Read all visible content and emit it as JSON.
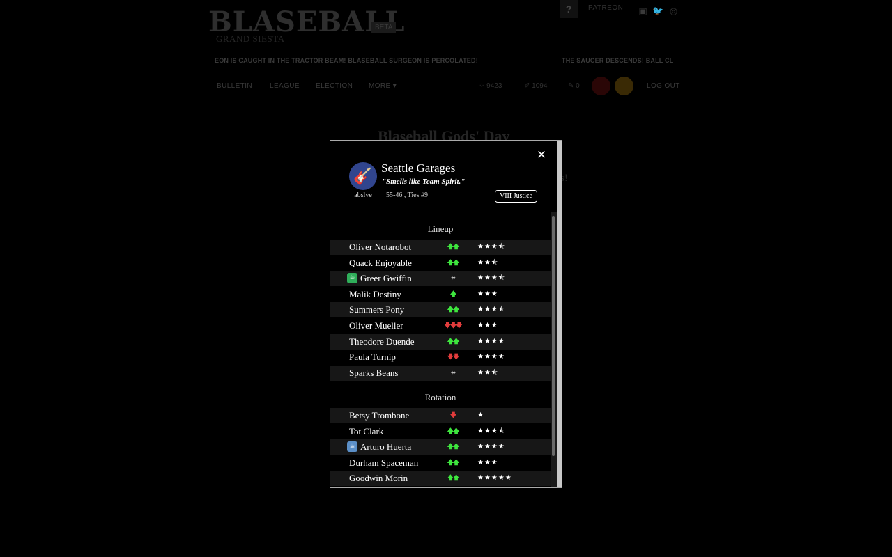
{
  "header": {
    "logo": "BLASEBALL",
    "beta": "BETA",
    "season": "GRAND SIESTA",
    "help": "?",
    "patreon": "PATREON"
  },
  "ticker": {
    "left": "EON IS CAUGHT IN THE TRACTOR BEAM! BLASEBALL SURGEON IS PERCOLATED!",
    "right": "THE SAUCER DESCENDS! BALL CLAR"
  },
  "nav": {
    "items": [
      "BULLETIN",
      "LEAGUE",
      "ELECTION",
      "MORE ▾"
    ],
    "coins": "9423",
    "votes": "1094",
    "snacks": "0",
    "logout": "LOG OUT"
  },
  "page": {
    "title": "Blaseball Gods' Day",
    "subtitle": "s!"
  },
  "colors": {
    "team_emblem": "#31458e",
    "trend_up": "#3ee63e",
    "trend_down": "#e23c3c",
    "item_green": "#2fae5a",
    "item_blue": "#5b8fc7"
  },
  "team": {
    "emblem_icon": "guitar-icon",
    "emblem_glyph": "🎸",
    "owner": "abslve",
    "name": "Seattle Garages",
    "slogan": "\"Smells like Team Spirit.\"",
    "record": "55-46 , Ties #9",
    "standings": "VIII Justice"
  },
  "close_glyph": "✕",
  "lineup": {
    "title": "Lineup",
    "players": [
      {
        "name": "Oliver Notarobot",
        "trend": "up",
        "trend_glyph": "🡅🡅",
        "stars": "★★★⯪"
      },
      {
        "name": "Quack Enjoyable",
        "trend": "up",
        "trend_glyph": "🡅🡅",
        "stars": "★★⯪"
      },
      {
        "name": "Greer Gwiffin",
        "trend": "flat",
        "trend_glyph": "⬌",
        "stars": "★★★⯪",
        "item": {
          "icon": "mug-icon",
          "glyph": "☕",
          "color": "#2fae5a"
        }
      },
      {
        "name": "Malik Destiny",
        "trend": "up",
        "trend_glyph": "🡅",
        "stars": "★★★"
      },
      {
        "name": "Summers Pony",
        "trend": "up",
        "trend_glyph": "🡅🡅",
        "stars": "★★★⯪"
      },
      {
        "name": "Oliver Mueller",
        "trend": "down",
        "trend_glyph": "🡇🡇🡇",
        "stars": "★★★"
      },
      {
        "name": "Theodore Duende",
        "trend": "up",
        "trend_glyph": "🡅🡅",
        "stars": "★★★★"
      },
      {
        "name": "Paula Turnip",
        "trend": "down",
        "trend_glyph": "🡇🡇",
        "stars": "★★★★"
      },
      {
        "name": "Sparks Beans",
        "trend": "flat",
        "trend_glyph": "⬌",
        "stars": "★★⯪"
      }
    ]
  },
  "rotation": {
    "title": "Rotation",
    "players": [
      {
        "name": "Betsy Trombone",
        "trend": "down",
        "trend_glyph": "🡇",
        "stars": "★"
      },
      {
        "name": "Tot Clark",
        "trend": "up",
        "trend_glyph": "🡅🡅",
        "stars": "★★★⯪"
      },
      {
        "name": "Arturo Huerta",
        "trend": "up",
        "trend_glyph": "🡅🡅",
        "stars": "★★★★",
        "item": {
          "icon": "mug-icon",
          "glyph": "☕",
          "color": "#5b8fc7"
        }
      },
      {
        "name": "Durham Spaceman",
        "trend": "up",
        "trend_glyph": "🡅🡅",
        "stars": "★★★"
      },
      {
        "name": "Goodwin Morin",
        "trend": "up",
        "trend_glyph": "🡅🡅",
        "stars": "★★★★★"
      }
    ]
  }
}
